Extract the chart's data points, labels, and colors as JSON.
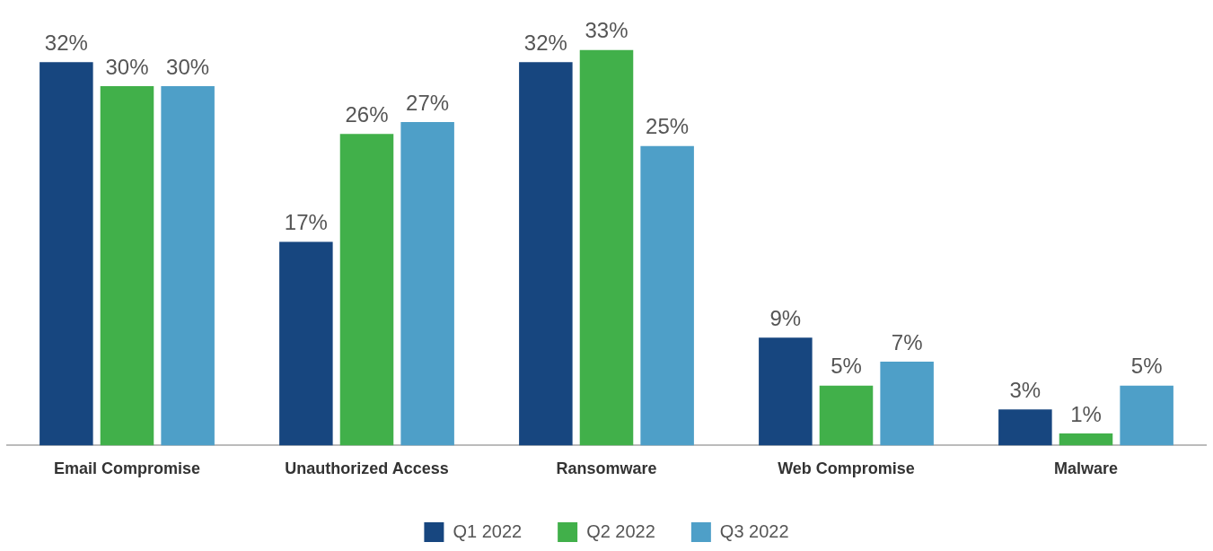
{
  "chart_data": {
    "type": "bar",
    "categories": [
      "Email Compromise",
      "Unauthorized Access",
      "Ransomware",
      "Web Compromise",
      "Malware"
    ],
    "series": [
      {
        "name": "Q1 2022",
        "color": "#17467f",
        "values": [
          32,
          17,
          32,
          9,
          3
        ],
        "value_labels": [
          "32%",
          "17%",
          "32%",
          "9%",
          "3%"
        ]
      },
      {
        "name": "Q2 2022",
        "color": "#41b04a",
        "values": [
          30,
          26,
          33,
          5,
          1
        ],
        "value_labels": [
          "30%",
          "26%",
          "33%",
          "5%",
          "1%"
        ]
      },
      {
        "name": "Q3 2022",
        "color": "#4e9fc8",
        "values": [
          30,
          27,
          25,
          7,
          5
        ],
        "value_labels": [
          "30%",
          "27%",
          "25%",
          "7%",
          "5%"
        ]
      }
    ],
    "legend": "bottom"
  }
}
